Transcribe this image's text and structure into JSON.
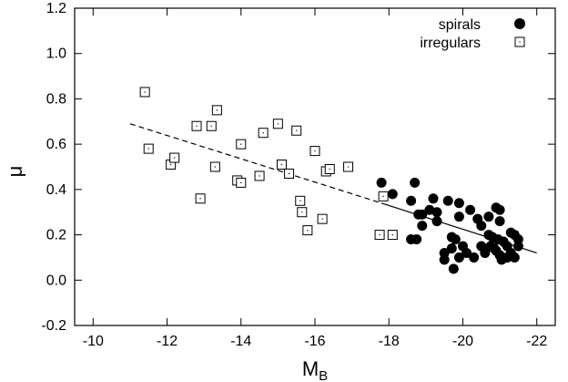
{
  "chart_data": {
    "type": "scatter",
    "xlabel": "M",
    "xlabel_sub": "B",
    "ylabel": "μ",
    "xlim": [
      -9.5,
      -22.5
    ],
    "ylim": [
      -0.2,
      1.2
    ],
    "x_ticks": [
      -10,
      -12,
      -14,
      -16,
      -18,
      -20,
      -22
    ],
    "y_ticks": [
      -0.2,
      0.0,
      0.2,
      0.4,
      0.6,
      0.8,
      1.0,
      1.2
    ],
    "x_tick_labels": [
      "-10",
      "-12",
      "-14",
      "-16",
      "-18",
      "-20",
      "-22"
    ],
    "y_tick_labels": [
      "-0.2",
      "0.0",
      "0.2",
      "0.4",
      "0.6",
      "0.8",
      "1.0",
      "1.2"
    ],
    "legend_position": "top-right",
    "grid": false,
    "series": [
      {
        "name": "spirals",
        "marker": "filled-circle",
        "points": [
          [
            -17.8,
            0.43
          ],
          [
            -18.1,
            0.38
          ],
          [
            -18.6,
            0.35
          ],
          [
            -18.7,
            0.43
          ],
          [
            -18.6,
            0.18
          ],
          [
            -18.75,
            0.18
          ],
          [
            -18.8,
            0.29
          ],
          [
            -18.9,
            0.29
          ],
          [
            -18.9,
            0.24
          ],
          [
            -19.1,
            0.31
          ],
          [
            -19.2,
            0.36
          ],
          [
            -19.3,
            0.26
          ],
          [
            -19.3,
            0.3
          ],
          [
            -19.5,
            0.12
          ],
          [
            -19.5,
            0.09
          ],
          [
            -19.6,
            0.35
          ],
          [
            -19.7,
            0.14
          ],
          [
            -19.7,
            0.19
          ],
          [
            -19.75,
            0.05
          ],
          [
            -19.8,
            0.18
          ],
          [
            -19.9,
            0.34
          ],
          [
            -19.9,
            0.28
          ],
          [
            -19.9,
            0.1
          ],
          [
            -20.0,
            0.15
          ],
          [
            -20.2,
            0.31
          ],
          [
            -20.3,
            0.1
          ],
          [
            -20.4,
            0.27
          ],
          [
            -20.5,
            0.24
          ],
          [
            -20.5,
            0.15
          ],
          [
            -20.6,
            0.13
          ],
          [
            -20.6,
            0.12
          ],
          [
            -20.7,
            0.2
          ],
          [
            -20.7,
            0.28
          ],
          [
            -20.75,
            0.15
          ],
          [
            -20.8,
            0.19
          ],
          [
            -20.85,
            0.14
          ],
          [
            -20.9,
            0.32
          ],
          [
            -20.9,
            0.13
          ],
          [
            -20.95,
            0.18
          ],
          [
            -21.0,
            0.31
          ],
          [
            -21.0,
            0.26
          ],
          [
            -21.0,
            0.11
          ],
          [
            -21.05,
            0.09
          ],
          [
            -21.1,
            0.17
          ],
          [
            -21.2,
            0.15
          ],
          [
            -21.2,
            0.1
          ],
          [
            -21.3,
            0.21
          ],
          [
            -21.3,
            0.12
          ],
          [
            -21.4,
            0.2
          ],
          [
            -21.4,
            0.1
          ],
          [
            -21.5,
            0.18
          ],
          [
            -21.5,
            0.15
          ],
          [
            -20.1,
            0.12
          ]
        ],
        "fit_line": [
          [
            -17.8,
            0.34
          ],
          [
            -22.0,
            0.12
          ]
        ]
      },
      {
        "name": "irregulars",
        "marker": "open-square",
        "points": [
          [
            -11.4,
            0.83
          ],
          [
            -11.5,
            0.58
          ],
          [
            -12.1,
            0.51
          ],
          [
            -12.2,
            0.54
          ],
          [
            -12.8,
            0.68
          ],
          [
            -12.9,
            0.36
          ],
          [
            -13.2,
            0.68
          ],
          [
            -13.3,
            0.5
          ],
          [
            -13.35,
            0.75
          ],
          [
            -13.9,
            0.44
          ],
          [
            -14.0,
            0.6
          ],
          [
            -14.0,
            0.43
          ],
          [
            -14.5,
            0.46
          ],
          [
            -14.6,
            0.65
          ],
          [
            -15.0,
            0.69
          ],
          [
            -15.1,
            0.51
          ],
          [
            -15.3,
            0.47
          ],
          [
            -15.5,
            0.66
          ],
          [
            -15.6,
            0.35
          ],
          [
            -15.65,
            0.3
          ],
          [
            -15.8,
            0.22
          ],
          [
            -16.0,
            0.57
          ],
          [
            -16.2,
            0.27
          ],
          [
            -16.3,
            0.48
          ],
          [
            -16.4,
            0.49
          ],
          [
            -16.9,
            0.5
          ],
          [
            -17.75,
            0.2
          ],
          [
            -17.85,
            0.37
          ],
          [
            -18.1,
            0.2
          ]
        ],
        "fit_line": [
          [
            -11.0,
            0.69
          ],
          [
            -17.8,
            0.34
          ]
        ]
      }
    ]
  }
}
